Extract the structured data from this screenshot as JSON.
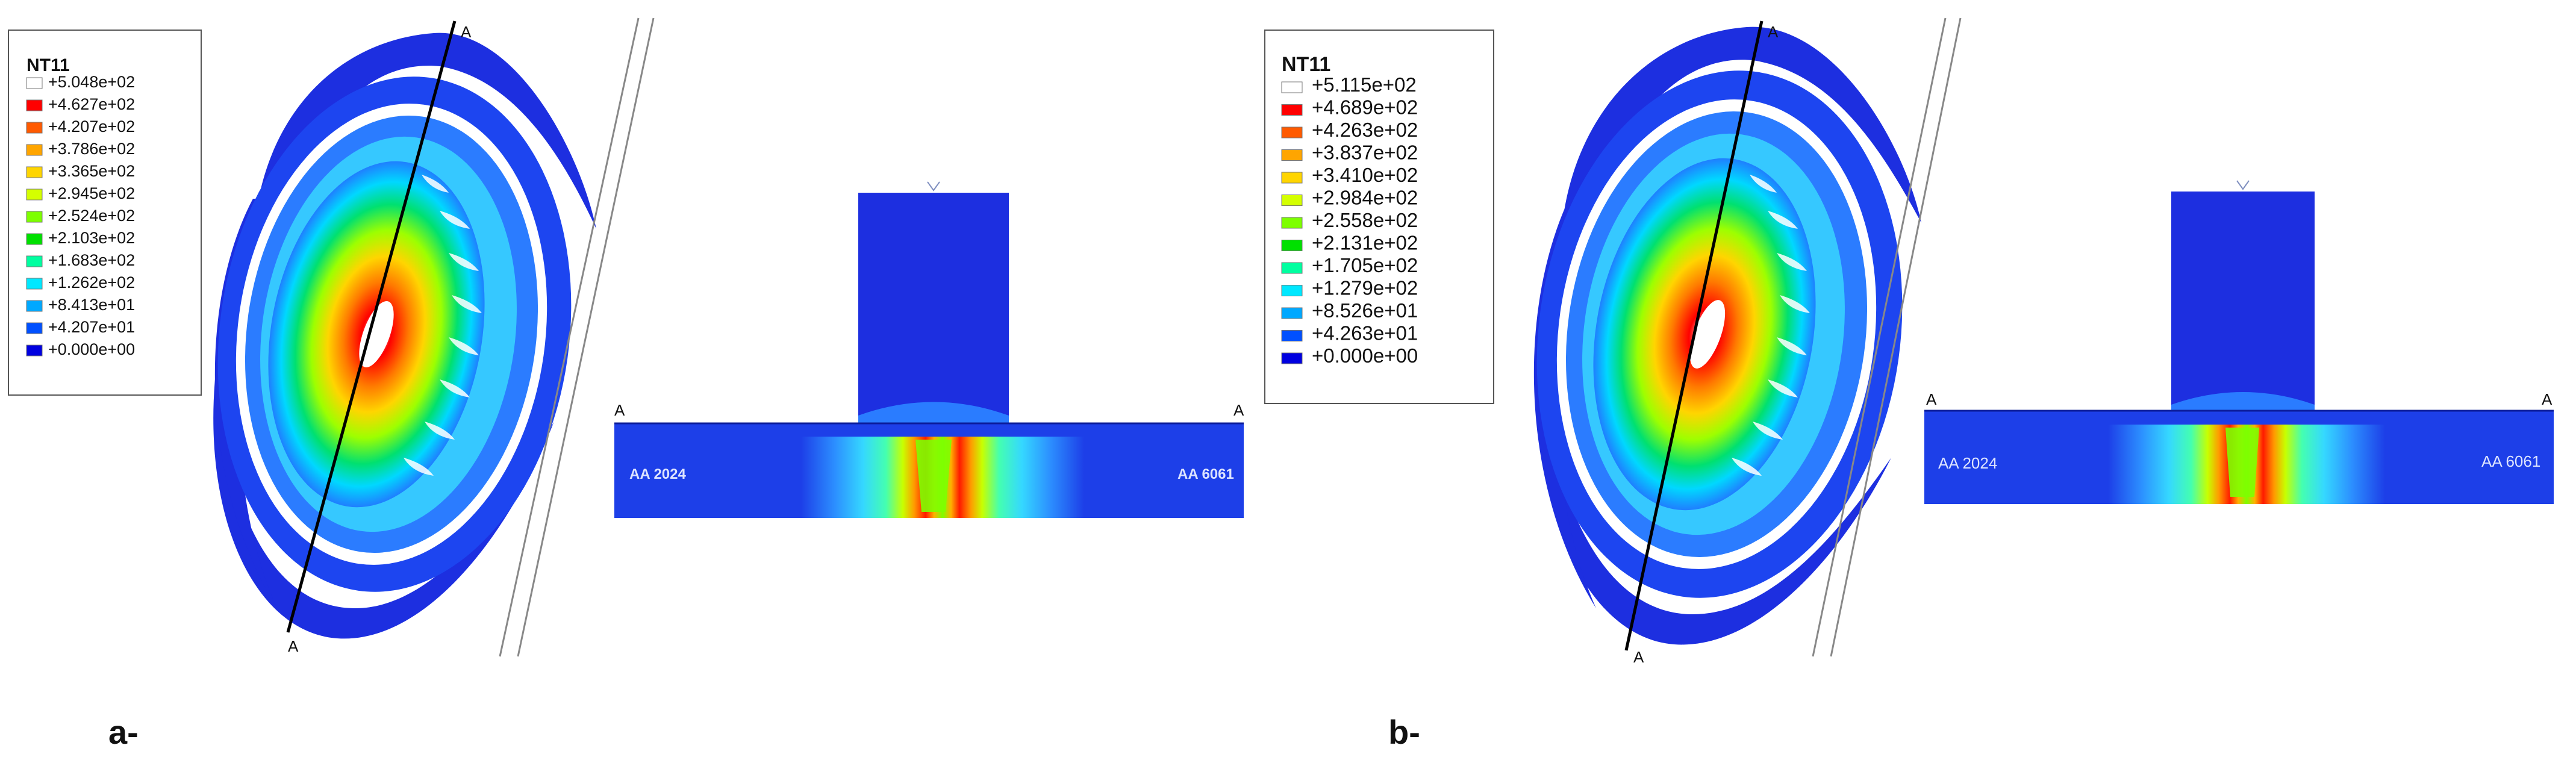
{
  "panels": [
    {
      "label": "a-",
      "legend_title": "NT11",
      "legend_values": [
        "+5.048e+02",
        "+4.627e+02",
        "+4.207e+02",
        "+3.786e+02",
        "+3.365e+02",
        "+2.945e+02",
        "+2.524e+02",
        "+2.103e+02",
        "+1.683e+02",
        "+1.262e+02",
        "+8.413e+01",
        "+4.207e+01",
        "+0.000e+00"
      ],
      "section_mark": "A",
      "left_material": "AA 2024",
      "right_material": "AA 6061"
    },
    {
      "label": "b-",
      "legend_title": "NT11",
      "legend_values": [
        "+5.115e+02",
        "+4.689e+02",
        "+4.263e+02",
        "+3.837e+02",
        "+3.410e+02",
        "+2.984e+02",
        "+2.558e+02",
        "+2.131e+02",
        "+1.705e+02",
        "+1.279e+02",
        "+8.526e+01",
        "+4.263e+01",
        "+0.000e+00"
      ],
      "section_mark": "A",
      "left_material": "AA 2024",
      "right_material": "AA 6061"
    }
  ],
  "colors": {
    "legend_swatches": [
      "#ffffff",
      "#ff0000",
      "#ff5a00",
      "#ffa500",
      "#ffd500",
      "#d4ff00",
      "#7dff00",
      "#00e000",
      "#00ffa0",
      "#00e8ff",
      "#00a8ff",
      "#0050ff",
      "#0000e0"
    ],
    "mesh_blue": "#1a2fe0",
    "background": "#ffffff"
  }
}
